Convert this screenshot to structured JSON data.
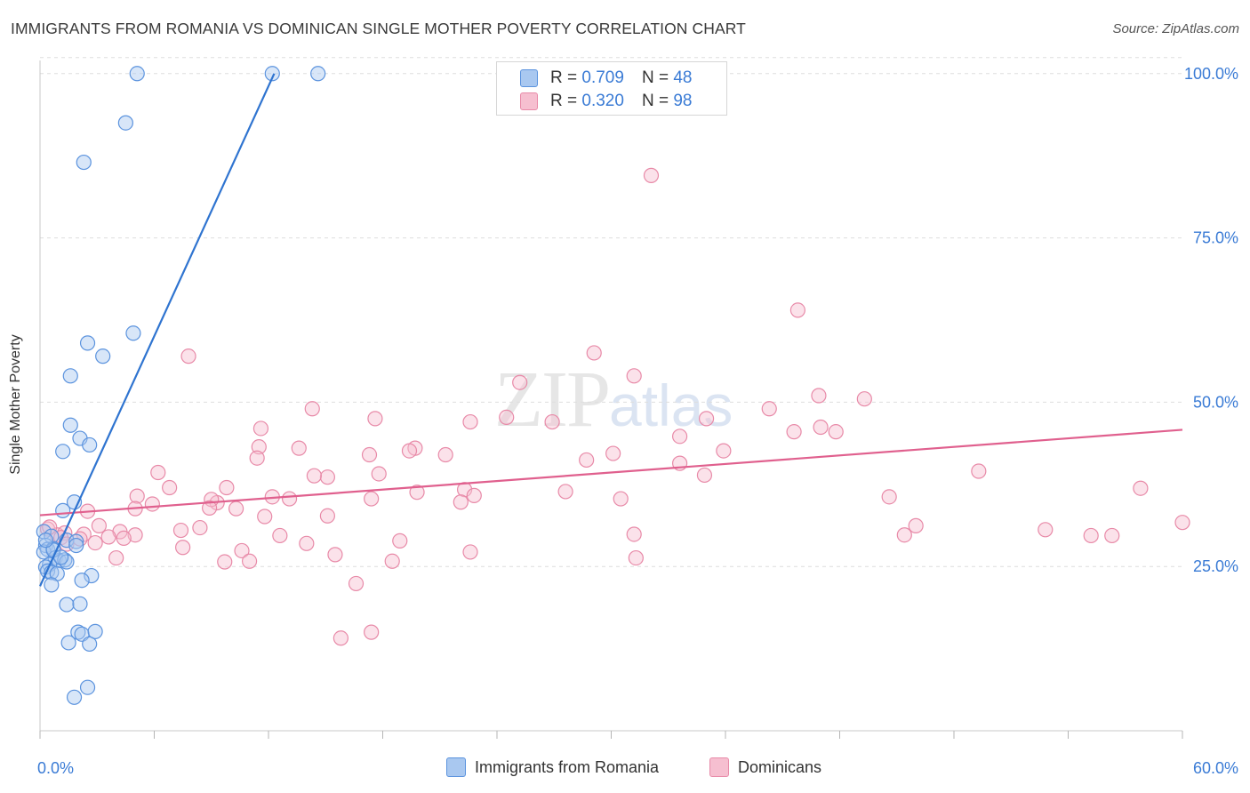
{
  "title": "IMMIGRANTS FROM ROMANIA VS DOMINICAN SINGLE MOTHER POVERTY CORRELATION CHART",
  "source": "Source: ZipAtlas.com",
  "watermark": {
    "zip": "ZIP",
    "atlas": "atlas"
  },
  "colors": {
    "blue_fill": "#a9c8f0",
    "blue_stroke": "#5b93de",
    "blue_line": "#2f74d0",
    "pink_fill": "#f6bfd0",
    "pink_stroke": "#e88aa8",
    "pink_line": "#e0608e",
    "tick_label": "#3a7bd5",
    "grid": "#dedede"
  },
  "legend": {
    "rows": [
      {
        "r_label": "R =",
        "r_value": "0.709",
        "n_label": "N =",
        "n_value": "48",
        "series": "blue"
      },
      {
        "r_label": "R =",
        "r_value": "0.320",
        "n_label": "N =",
        "n_value": "98",
        "series": "pink"
      }
    ]
  },
  "bottom_legend": {
    "blue_label": "Immigrants from Romania",
    "pink_label": "Dominicans"
  },
  "chart_data": {
    "type": "scatter",
    "title": "IMMIGRANTS FROM ROMANIA VS DOMINICAN SINGLE MOTHER POVERTY CORRELATION CHART",
    "xlabel": "",
    "ylabel": "Single Mother Poverty",
    "xlim": [
      0,
      60
    ],
    "ylim": [
      0,
      102
    ],
    "x_tick_labels": [
      "0.0%",
      "60.0%"
    ],
    "y_ticks": [
      25,
      50,
      75,
      100
    ],
    "y_tick_labels": [
      "25.0%",
      "50.0%",
      "75.0%",
      "100.0%"
    ],
    "grid": true,
    "series": [
      {
        "name": "Immigrants from Romania",
        "color": "blue",
        "R": 0.709,
        "N": 48,
        "trend": {
          "x": [
            0,
            12.3
          ],
          "y": [
            22.0,
            100.0
          ]
        },
        "points": [
          [
            5.1,
            100
          ],
          [
            12.2,
            100
          ],
          [
            14.6,
            100
          ],
          [
            4.5,
            92.5
          ],
          [
            2.3,
            86.5
          ],
          [
            4.9,
            60.5
          ],
          [
            2.5,
            59
          ],
          [
            3.3,
            57
          ],
          [
            1.6,
            54
          ],
          [
            1.6,
            46.5
          ],
          [
            2.1,
            44.5
          ],
          [
            2.6,
            43.5
          ],
          [
            1.2,
            42.5
          ],
          [
            1.8,
            34.8
          ],
          [
            1.2,
            33.5
          ],
          [
            0.2,
            30.3
          ],
          [
            0.6,
            29.6
          ],
          [
            1.4,
            29
          ],
          [
            1.9,
            28.8
          ],
          [
            1.9,
            28.2
          ],
          [
            0.3,
            28.2
          ],
          [
            0.4,
            27.6
          ],
          [
            0.2,
            27.2
          ],
          [
            0.7,
            27.7
          ],
          [
            0.8,
            26.3
          ],
          [
            1.0,
            25.9
          ],
          [
            1.3,
            26.0
          ],
          [
            1.4,
            25.7
          ],
          [
            0.5,
            25.3
          ],
          [
            0.3,
            24.9
          ],
          [
            0.4,
            24.3
          ],
          [
            0.6,
            24.1
          ],
          [
            0.9,
            23.9
          ],
          [
            2.7,
            23.6
          ],
          [
            2.2,
            22.9
          ],
          [
            0.6,
            22.2
          ],
          [
            1.4,
            19.2
          ],
          [
            2.1,
            19.3
          ],
          [
            2.0,
            15.0
          ],
          [
            2.2,
            14.7
          ],
          [
            2.9,
            15.1
          ],
          [
            1.5,
            13.4
          ],
          [
            2.6,
            13.2
          ],
          [
            2.5,
            6.6
          ],
          [
            1.8,
            5.1
          ],
          [
            0.7,
            27.5
          ],
          [
            1.1,
            26.4
          ],
          [
            0.3,
            29.0
          ]
        ]
      },
      {
        "name": "Dominicans",
        "color": "pink",
        "R": 0.32,
        "N": 98,
        "trend": {
          "x": [
            0,
            60
          ],
          "y": [
            32.8,
            45.8
          ]
        },
        "points": [
          [
            32.1,
            84.5
          ],
          [
            39.8,
            64
          ],
          [
            29.1,
            57.5
          ],
          [
            7.8,
            57
          ],
          [
            31.2,
            54
          ],
          [
            25.2,
            53
          ],
          [
            40.9,
            51
          ],
          [
            43.3,
            50.5
          ],
          [
            14.3,
            49
          ],
          [
            38.3,
            49
          ],
          [
            17.6,
            47.5
          ],
          [
            24.5,
            47.7
          ],
          [
            35.0,
            47.5
          ],
          [
            22.6,
            47
          ],
          [
            26.9,
            47
          ],
          [
            11.6,
            46
          ],
          [
            41.0,
            46.2
          ],
          [
            39.6,
            45.5
          ],
          [
            41.8,
            45.5
          ],
          [
            33.6,
            44.8
          ],
          [
            13.6,
            43
          ],
          [
            19.7,
            43
          ],
          [
            11.5,
            43.2
          ],
          [
            19.4,
            42.6
          ],
          [
            21.3,
            42
          ],
          [
            35.9,
            42.6
          ],
          [
            30.1,
            42.2
          ],
          [
            17.3,
            42
          ],
          [
            11.4,
            41.5
          ],
          [
            28.7,
            41.2
          ],
          [
            33.6,
            40.7
          ],
          [
            15.1,
            38.6
          ],
          [
            6.2,
            39.3
          ],
          [
            14.4,
            38.8
          ],
          [
            49.3,
            39.5
          ],
          [
            34.9,
            38.9
          ],
          [
            17.8,
            39.1
          ],
          [
            6.8,
            37
          ],
          [
            9.8,
            37
          ],
          [
            19.8,
            36.3
          ],
          [
            17.4,
            35.3
          ],
          [
            5.1,
            35.7
          ],
          [
            12.2,
            35.6
          ],
          [
            13.1,
            35.3
          ],
          [
            22.3,
            36.7
          ],
          [
            22.8,
            35.8
          ],
          [
            30.5,
            35.3
          ],
          [
            27.6,
            36.4
          ],
          [
            44.6,
            35.6
          ],
          [
            5.9,
            34.5
          ],
          [
            9.3,
            34.7
          ],
          [
            9.0,
            35.2
          ],
          [
            8.9,
            33.9
          ],
          [
            5.0,
            33.8
          ],
          [
            10.3,
            33.8
          ],
          [
            11.8,
            32.6
          ],
          [
            15.1,
            32.7
          ],
          [
            22.1,
            34.8
          ],
          [
            2.5,
            33.4
          ],
          [
            3.1,
            31.2
          ],
          [
            4.2,
            30.3
          ],
          [
            7.4,
            30.5
          ],
          [
            5.0,
            29.8
          ],
          [
            8.4,
            30.9
          ],
          [
            12.6,
            29.7
          ],
          [
            2.3,
            29.9
          ],
          [
            0.4,
            30.7
          ],
          [
            0.9,
            29.8
          ],
          [
            1.3,
            30.1
          ],
          [
            3.6,
            29.5
          ],
          [
            4.4,
            29.3
          ],
          [
            1.1,
            29.4
          ],
          [
            2.1,
            29.2
          ],
          [
            1.4,
            28.4
          ],
          [
            2.9,
            28.6
          ],
          [
            14.0,
            28.5
          ],
          [
            18.9,
            28.9
          ],
          [
            31.2,
            29.9
          ],
          [
            46.0,
            31.2
          ],
          [
            45.4,
            29.8
          ],
          [
            52.8,
            30.6
          ],
          [
            55.2,
            29.7
          ],
          [
            56.3,
            29.7
          ],
          [
            60.0,
            31.7
          ],
          [
            57.8,
            36.9
          ],
          [
            7.5,
            27.9
          ],
          [
            10.6,
            27.4
          ],
          [
            15.5,
            26.8
          ],
          [
            22.6,
            27.2
          ],
          [
            4.0,
            26.3
          ],
          [
            9.7,
            25.7
          ],
          [
            11.0,
            25.8
          ],
          [
            18.5,
            25.8
          ],
          [
            31.3,
            26.3
          ],
          [
            16.6,
            22.4
          ],
          [
            17.4,
            15.0
          ],
          [
            15.8,
            14.1
          ],
          [
            0.5,
            31.0
          ]
        ]
      }
    ]
  }
}
